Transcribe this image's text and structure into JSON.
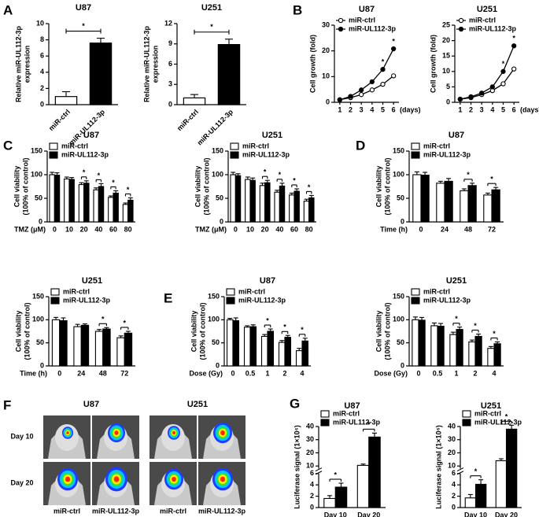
{
  "panels": [
    "A",
    "B",
    "C",
    "D",
    "E",
    "F",
    "G"
  ],
  "figure_f": {
    "columns": [
      "U87",
      "U251"
    ],
    "rows": [
      "Day 10",
      "Day 20"
    ],
    "labels": [
      "miR-ctrl",
      "miR-UL112-3p",
      "miR-ctrl",
      "miR-UL112-3p"
    ]
  },
  "chart_data": [
    {
      "type": "bar",
      "title": "U87",
      "categories": [
        "miR-ctrl",
        "miR-UL112-3p"
      ],
      "values": [
        1,
        7.6
      ],
      "errors": [
        0.6,
        0.6
      ],
      "colors": [
        "#ffffff",
        "#000000"
      ],
      "ylabel": [
        "Relative miR-UL112-3p",
        "expression"
      ],
      "ylim": [
        0,
        10
      ],
      "yticks": [
        0,
        2,
        4,
        6,
        8,
        10
      ],
      "annotation": "*"
    },
    {
      "type": "bar",
      "title": "U251",
      "categories": [
        "miR-ctrl",
        "miR-UL112-3p"
      ],
      "values": [
        1,
        8.9
      ],
      "errors": [
        0.5,
        0.8
      ],
      "colors": [
        "#ffffff",
        "#000000"
      ],
      "ylabel": [
        "Relative miR-UL112-3p",
        "expression"
      ],
      "ylim": [
        0,
        12
      ],
      "yticks": [
        0,
        3,
        6,
        9,
        12
      ],
      "annotation": "*"
    },
    {
      "type": "line",
      "title": "U87",
      "x": [
        1,
        2,
        3,
        4,
        5,
        6
      ],
      "xlim": [
        0.5,
        6.5
      ],
      "xticks": [
        1,
        2,
        3,
        4,
        5,
        6
      ],
      "xlabel": "(days)",
      "ylabel": [
        "Cell growth (fold)"
      ],
      "ylim": [
        0,
        30
      ],
      "yticks": [
        0,
        10,
        20,
        30
      ],
      "series": [
        {
          "name": "miR-ctrl",
          "color": "#000000",
          "marker": "open",
          "values": [
            1,
            1.8,
            3,
            4.8,
            7,
            10.3
          ]
        },
        {
          "name": "miR-UL112-3p",
          "color": "#000000",
          "marker": "filled",
          "values": [
            1,
            2.3,
            4.8,
            8,
            12.8,
            20.8
          ]
        }
      ],
      "significant": [
        false,
        false,
        false,
        false,
        true,
        true
      ],
      "sig_label": "*"
    },
    {
      "type": "line",
      "title": "U251",
      "x": [
        1,
        2,
        3,
        4,
        5,
        6
      ],
      "xlim": [
        0.5,
        6.5
      ],
      "xticks": [
        1,
        2,
        3,
        4,
        5,
        6
      ],
      "xlabel": "(days)",
      "ylabel": [
        "Cell growth (fold)"
      ],
      "ylim": [
        0,
        25
      ],
      "yticks": [
        0,
        5,
        10,
        15,
        20,
        25
      ],
      "series": [
        {
          "name": "miR-ctrl",
          "color": "#000000",
          "marker": "open",
          "values": [
            1,
            1.5,
            2.5,
            3.8,
            6,
            10.8
          ]
        },
        {
          "name": "miR-UL112-3p",
          "color": "#000000",
          "marker": "filled",
          "values": [
            1,
            1.8,
            3,
            5,
            10,
            18.3
          ]
        }
      ],
      "significant": [
        false,
        false,
        false,
        false,
        true,
        true
      ],
      "sig_label": "*"
    },
    {
      "type": "bar",
      "title": "U87",
      "categories": [
        "0",
        "10",
        "20",
        "40",
        "60",
        "80"
      ],
      "xlabel": "TMZ (μM)",
      "ylabel": [
        "Cell viability",
        "(100% of control)"
      ],
      "ylim": [
        0,
        150
      ],
      "yticks": [
        0,
        50,
        100,
        150
      ],
      "series": [
        {
          "name": "miR-ctrl",
          "color": "#ffffff",
          "values": [
            100,
            91,
            79,
            68,
            52,
            37
          ],
          "errors": [
            5,
            4,
            4,
            4,
            3,
            3
          ]
        },
        {
          "name": "miR-UL112-3p",
          "color": "#000000",
          "values": [
            99,
            90,
            82,
            75,
            61,
            46
          ],
          "errors": [
            5,
            4,
            5,
            6,
            5,
            5
          ]
        }
      ],
      "significant": [
        false,
        false,
        true,
        true,
        true,
        true
      ],
      "sig_label": "*"
    },
    {
      "type": "bar",
      "title": "U251",
      "categories": [
        "0",
        "10",
        "20",
        "40",
        "60",
        "80"
      ],
      "xlabel": "TMZ (μM)",
      "ylabel": [
        "Cell viability",
        "(100% of control)"
      ],
      "ylim": [
        0,
        150
      ],
      "yticks": [
        0,
        50,
        100,
        150
      ],
      "series": [
        {
          "name": "miR-ctrl",
          "color": "#ffffff",
          "values": [
            100,
            90,
            77,
            63,
            57,
            44
          ],
          "errors": [
            5,
            5,
            5,
            4,
            4,
            4
          ]
        },
        {
          "name": "miR-UL112-3p",
          "color": "#000000",
          "values": [
            98,
            88,
            83,
            76,
            65,
            51
          ],
          "errors": [
            4,
            5,
            5,
            6,
            5,
            5
          ]
        }
      ],
      "significant": [
        false,
        false,
        true,
        true,
        true,
        true
      ],
      "sig_label": "*"
    },
    {
      "type": "bar",
      "title": "U87",
      "categories": [
        "0",
        "24",
        "48",
        "72"
      ],
      "xlabel": "Time (h)",
      "ylabel": [
        "Cell viability",
        "(100% of control)"
      ],
      "ylim": [
        0,
        150
      ],
      "yticks": [
        0,
        50,
        100,
        150
      ],
      "series": [
        {
          "name": "miR-ctrl",
          "color": "#ffffff",
          "values": [
            100,
            82,
            66,
            57
          ],
          "errors": [
            6,
            4,
            4,
            4
          ]
        },
        {
          "name": "miR-UL112-3p",
          "color": "#000000",
          "values": [
            99,
            86,
            77,
            68
          ],
          "errors": [
            6,
            6,
            5,
            5
          ]
        }
      ],
      "significant": [
        false,
        false,
        true,
        true
      ],
      "sig_label": "*"
    },
    {
      "type": "bar",
      "title": "U251",
      "categories": [
        "0",
        "24",
        "48",
        "72"
      ],
      "xlabel": "Time (h)",
      "ylabel": [
        "Cell viability",
        "(100% of control)"
      ],
      "ylim": [
        0,
        150
      ],
      "yticks": [
        0,
        50,
        100,
        150
      ],
      "series": [
        {
          "name": "miR-ctrl",
          "color": "#ffffff",
          "values": [
            100,
            85,
            75,
            61
          ],
          "errors": [
            5,
            5,
            4,
            4
          ]
        },
        {
          "name": "miR-UL112-3p",
          "color": "#000000",
          "values": [
            98,
            88,
            80,
            71
          ],
          "errors": [
            6,
            3,
            3,
            4
          ]
        }
      ],
      "significant": [
        false,
        false,
        true,
        true
      ],
      "sig_label": "*"
    },
    {
      "type": "bar",
      "title": "U87",
      "categories": [
        "0",
        "0.5",
        "1",
        "2",
        "4"
      ],
      "xlabel": "Dose (Gy)",
      "ylabel": [
        "Cell viability",
        "(100% of control)"
      ],
      "ylim": [
        0,
        150
      ],
      "yticks": [
        0,
        50,
        100,
        150
      ],
      "series": [
        {
          "name": "miR-ctrl",
          "color": "#ffffff",
          "values": [
            100,
            84,
            64,
            51,
            33
          ],
          "errors": [
            3,
            3,
            4,
            4,
            5
          ]
        },
        {
          "name": "miR-UL112-3p",
          "color": "#000000",
          "values": [
            98,
            85,
            75,
            62,
            54
          ],
          "errors": [
            6,
            4,
            5,
            4,
            6
          ]
        }
      ],
      "significant": [
        false,
        false,
        true,
        true,
        true
      ],
      "sig_label": "*"
    },
    {
      "type": "bar",
      "title": "U251",
      "categories": [
        "0",
        "0.5",
        "1",
        "2",
        "4"
      ],
      "xlabel": "Dose (Gy)",
      "ylabel": [
        "Cell viability",
        "(100% of control)"
      ],
      "ylim": [
        0,
        150
      ],
      "yticks": [
        0,
        50,
        100,
        150
      ],
      "series": [
        {
          "name": "miR-ctrl",
          "color": "#ffffff",
          "values": [
            100,
            87,
            68,
            52,
            38
          ],
          "errors": [
            6,
            6,
            5,
            4,
            4
          ]
        },
        {
          "name": "miR-UL112-3p",
          "color": "#000000",
          "values": [
            99,
            86,
            79,
            64,
            48
          ],
          "errors": [
            6,
            6,
            5,
            5,
            4
          ]
        }
      ],
      "significant": [
        false,
        false,
        true,
        true,
        true
      ],
      "sig_label": "*"
    },
    {
      "type": "bar",
      "title": "U87",
      "categories": [
        "Day 10",
        "Day 20"
      ],
      "ylabel": [
        "Luciferase signal (1×10⁶)"
      ],
      "ylim": [
        [
          0,
          6
        ],
        [
          8,
          40
        ]
      ],
      "yticks": [
        [
          0,
          2,
          4,
          6
        ],
        [
          10,
          20,
          30,
          40
        ]
      ],
      "series": [
        {
          "name": "miR-ctrl",
          "color": "#ffffff",
          "values": [
            1.6,
            10.5
          ],
          "errors": [
            0.5,
            1
          ]
        },
        {
          "name": "miR-UL112-3p",
          "color": "#000000",
          "values": [
            3.6,
            32
          ],
          "errors": [
            0.7,
            3
          ]
        }
      ],
      "significant": [
        true,
        true
      ],
      "sig_label": "*"
    },
    {
      "type": "bar",
      "title": "U251",
      "categories": [
        "Day 10",
        "Day 20"
      ],
      "ylabel": [
        "Luciferase signal (1×10⁶)"
      ],
      "ylim": [
        [
          0,
          6
        ],
        [
          8,
          40
        ]
      ],
      "yticks": [
        [
          0,
          2,
          4,
          6
        ],
        [
          10,
          20,
          30,
          40
        ]
      ],
      "series": [
        {
          "name": "miR-ctrl",
          "color": "#ffffff",
          "values": [
            1.7,
            14
          ],
          "errors": [
            0.6,
            1.5
          ]
        },
        {
          "name": "miR-UL112-3p",
          "color": "#000000",
          "values": [
            4.1,
            38
          ],
          "errors": [
            0.8,
            3
          ]
        }
      ],
      "significant": [
        true,
        true
      ],
      "sig_label": "*"
    }
  ]
}
